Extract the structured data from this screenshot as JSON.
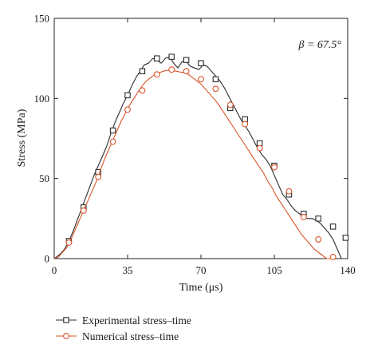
{
  "chart_data": {
    "type": "line",
    "xlabel": "Time (μs)",
    "ylabel": "Stress (MPa)",
    "xlim": [
      0,
      140
    ],
    "ylim": [
      0,
      150
    ],
    "xticks": [
      "0",
      "35",
      "70",
      "105",
      "140"
    ],
    "yticks": [
      "0",
      "50",
      "100",
      "150"
    ],
    "annotation": "β = 67.5°",
    "grid": false,
    "legend_position": "below",
    "series": [
      {
        "name": "Experimental stress–time",
        "color": "#2b2b2b",
        "marker": "square",
        "x": [
          0,
          1,
          3,
          5,
          7,
          9,
          11,
          13,
          15,
          17,
          19,
          21,
          23,
          25,
          27,
          29,
          31,
          33,
          35,
          37,
          39,
          41,
          43,
          45,
          47,
          49,
          51,
          53,
          55,
          57,
          59,
          61,
          63,
          65,
          67,
          69,
          71,
          73,
          75,
          77,
          79,
          81,
          83,
          85,
          87,
          89,
          91,
          93,
          95,
          97,
          99,
          101,
          103,
          105,
          107,
          109,
          111,
          113,
          115,
          117,
          119,
          121,
          123,
          125,
          127,
          129,
          131,
          133,
          135,
          137,
          139
        ],
        "y": [
          0,
          1,
          3,
          6,
          11,
          17,
          24,
          31,
          38,
          45,
          52,
          58,
          64,
          70,
          78,
          85,
          91,
          97,
          102,
          108,
          113,
          117,
          121,
          122,
          125,
          124,
          122,
          125,
          126,
          122,
          119,
          123,
          123,
          120,
          119,
          118,
          121,
          120,
          117,
          114,
          111,
          107,
          102,
          97,
          92,
          87,
          83,
          79,
          74,
          69,
          65,
          62,
          58,
          52,
          46,
          40,
          37,
          33,
          30,
          28,
          26,
          25,
          25,
          24,
          22,
          19,
          16,
          12,
          6,
          0,
          0
        ],
        "marker_x": [
          7,
          14,
          21,
          28,
          35,
          42,
          49,
          56,
          63,
          70,
          77,
          84,
          91,
          98,
          105,
          112,
          119,
          126,
          133,
          139
        ],
        "marker_y": [
          11,
          32,
          54,
          80,
          102,
          117,
          125,
          126,
          124,
          122,
          112,
          94,
          87,
          72,
          58,
          40,
          28,
          25,
          20,
          13
        ]
      },
      {
        "name": "Numerical stress–time",
        "color": "#d8562a",
        "marker": "circle",
        "x": [
          0,
          2,
          4,
          6,
          8,
          10,
          12,
          14,
          16,
          18,
          20,
          22,
          24,
          26,
          28,
          30,
          32,
          34,
          36,
          38,
          40,
          42,
          44,
          46,
          48,
          50,
          52,
          54,
          56,
          58,
          60,
          62,
          64,
          66,
          68,
          70,
          72,
          74,
          76,
          78,
          80,
          82,
          84,
          86,
          88,
          90,
          92,
          94,
          96,
          98,
          100,
          102,
          104,
          106,
          108,
          110,
          112,
          114,
          116,
          118,
          120,
          122,
          124,
          126,
          128,
          130,
          132
        ],
        "y": [
          0,
          1,
          4,
          7,
          12,
          18,
          24,
          30,
          36,
          42,
          48,
          55,
          62,
          68,
          74,
          80,
          86,
          91,
          96,
          100,
          104,
          108,
          111,
          113,
          115,
          116,
          117,
          117.5,
          117.5,
          117,
          116.5,
          116,
          115,
          113,
          111,
          109,
          106,
          103,
          100,
          97,
          93,
          89,
          85,
          81,
          77,
          73,
          69,
          65,
          61,
          57,
          53,
          48,
          44,
          39,
          35,
          31,
          27,
          23,
          19,
          15,
          12,
          9,
          6,
          4,
          2,
          0,
          0
        ],
        "marker_x": [
          7,
          14,
          21,
          28,
          35,
          42,
          49,
          56,
          63,
          70,
          77,
          84,
          91,
          98,
          105,
          112,
          119,
          126,
          133
        ],
        "marker_y": [
          10,
          30,
          51,
          73,
          93,
          105,
          115,
          118,
          117,
          112,
          106,
          96,
          84,
          69,
          57,
          42,
          26,
          12,
          1
        ]
      }
    ]
  }
}
